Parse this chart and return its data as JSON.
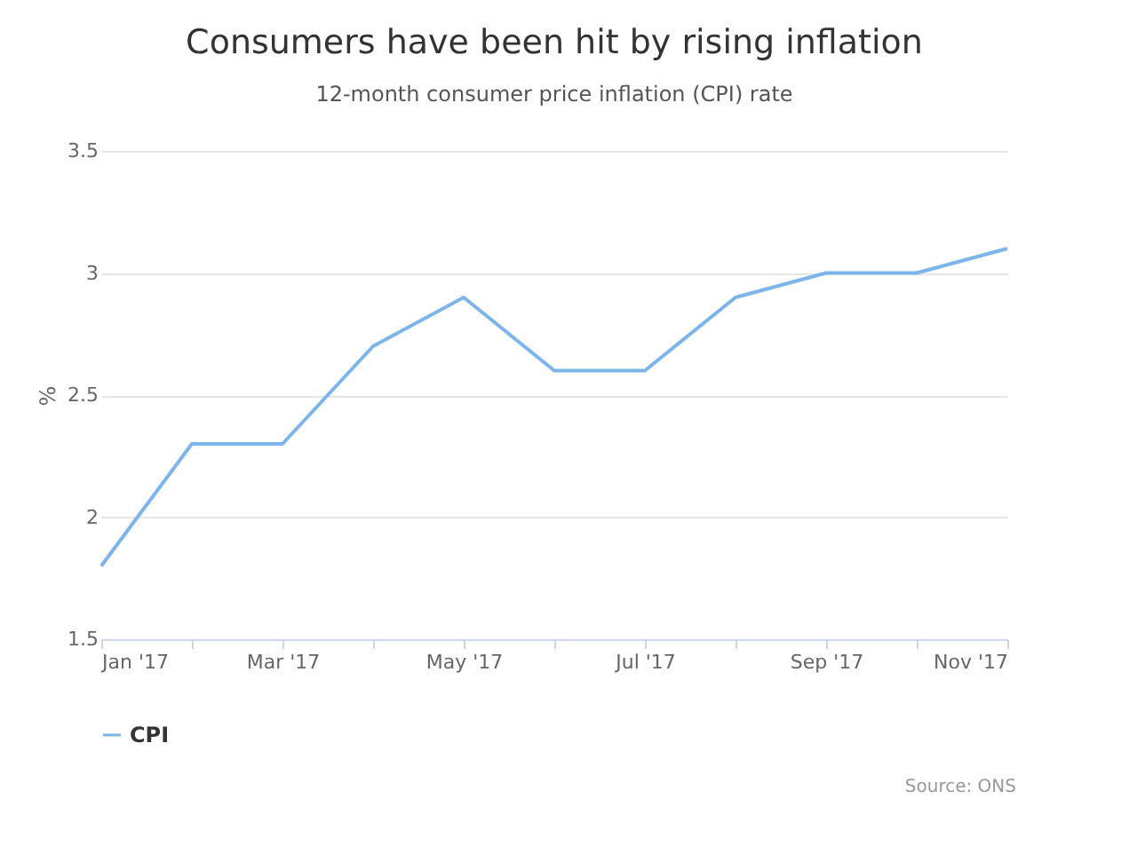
{
  "chart_data": {
    "type": "line",
    "title": "Consumers have been hit by rising inflation",
    "subtitle": "12-month consumer price inflation (CPI) rate",
    "ylabel": "%",
    "categories": [
      "Jan '17",
      null,
      "Mar '17",
      null,
      "May '17",
      null,
      "Jul '17",
      null,
      "Sep '17",
      null,
      "Nov '17"
    ],
    "series": [
      {
        "name": "CPI",
        "color": "#7cb5ec",
        "values": [
          1.8,
          2.3,
          2.3,
          2.7,
          2.9,
          2.6,
          2.6,
          2.9,
          3.0,
          3.0,
          3.1
        ]
      }
    ],
    "ylim": [
      1.5,
      3.5
    ],
    "yticks": [
      1.5,
      2,
      2.5,
      3,
      3.5
    ],
    "grid": "y",
    "legend": "bottom",
    "marker": "none",
    "line_style": "solid",
    "annotations": [
      "Source: ONS"
    ]
  }
}
